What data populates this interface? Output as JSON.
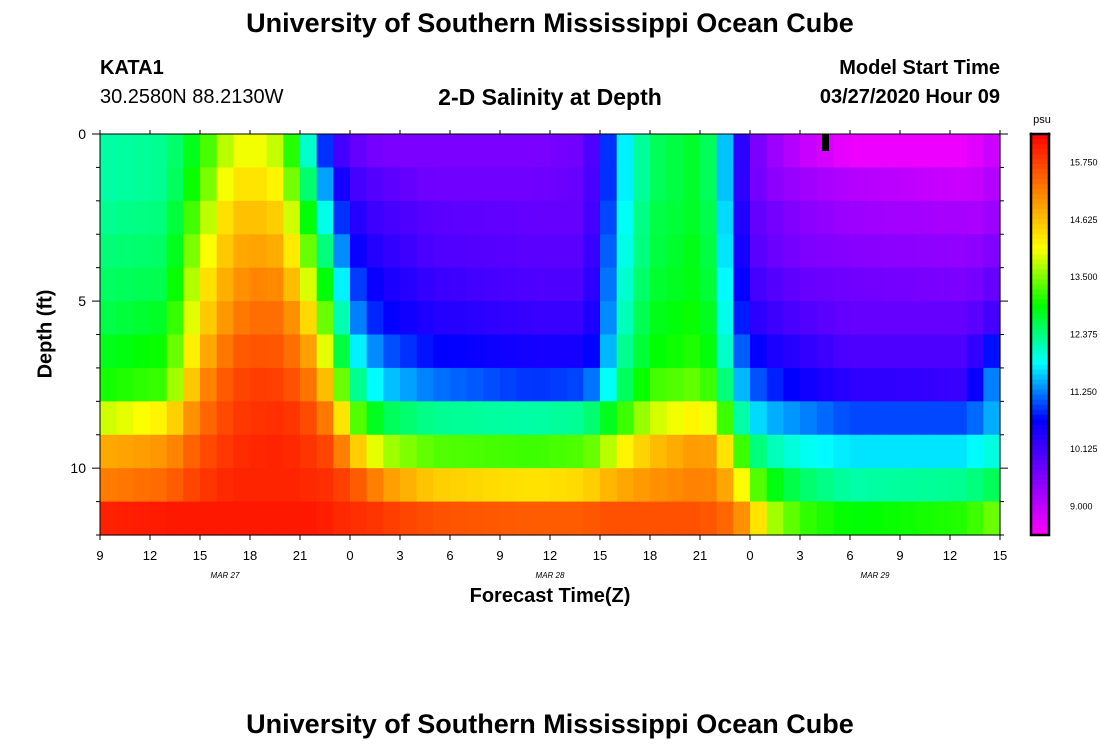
{
  "page": {
    "title_top": "University of Southern Mississippi Ocean Cube",
    "title_bottom": "University of Southern Mississippi Ocean Cube",
    "station": "KATA1",
    "coords": "30.2580N 88.2130W",
    "subtitle": "2-D Salinity at Depth",
    "model_label": "Model Start Time",
    "model_time": "03/27/2020 Hour 09"
  },
  "colors": {
    "magenta": "#ff00ff",
    "violet": "#8000ff",
    "blue": "#0000ff",
    "cyan": "#00ffff",
    "green": "#00ff00",
    "yellow": "#ffff00",
    "orange": "#ff8000",
    "red": "#ff0000"
  },
  "chart_data": {
    "type": "heatmap",
    "title": "2-D Salinity at Depth",
    "xlabel": "Forecast Time(Z)",
    "ylabel": "Depth (ft)",
    "colorbar_label": "psu",
    "colorbar_ticks": [
      "15.750",
      "14.625",
      "13.500",
      "12.375",
      "11.250",
      "10.125",
      "9.000"
    ],
    "colorbar_range": [
      8.4375,
      16.3125
    ],
    "x_tick_labels": [
      "9",
      "12",
      "15",
      "18",
      "21",
      "0",
      "3",
      "6",
      "9",
      "12",
      "15",
      "18",
      "21",
      "0",
      "3",
      "6",
      "9",
      "12",
      "15"
    ],
    "x_range_hours": [
      0,
      54
    ],
    "date_labels": [
      {
        "text": "MAR 27",
        "hour": 7.5
      },
      {
        "text": "MAR 28",
        "hour": 27
      },
      {
        "text": "MAR 29",
        "hour": 46.5
      }
    ],
    "y_tick_labels": [
      "0",
      "5",
      "10"
    ],
    "y_tick_values": [
      0,
      5,
      10
    ],
    "ylim": [
      0,
      12
    ],
    "rows": 12,
    "cols": 54,
    "keyframes": [
      {
        "h": 0,
        "v": [
          12.2,
          12.2,
          12.3,
          12.4,
          12.5,
          12.6,
          12.8,
          13.0,
          13.8,
          14.8,
          15.2,
          16.0
        ]
      },
      {
        "h": 4,
        "v": [
          12.3,
          12.3,
          12.4,
          12.5,
          12.6,
          12.8,
          13.0,
          13.2,
          14.2,
          15.0,
          15.4,
          16.1
        ]
      },
      {
        "h": 6,
        "v": [
          13.0,
          13.2,
          13.5,
          13.8,
          14.1,
          14.3,
          14.6,
          15.0,
          15.3,
          15.6,
          15.8,
          16.1
        ]
      },
      {
        "h": 8,
        "v": [
          14.0,
          14.3,
          14.6,
          14.8,
          15.0,
          15.2,
          15.5,
          15.7,
          15.8,
          15.9,
          16.0,
          16.1
        ]
      },
      {
        "h": 10,
        "v": [
          14.0,
          14.3,
          14.6,
          14.9,
          15.2,
          15.4,
          15.6,
          15.8,
          15.9,
          16.0,
          16.0,
          16.1
        ]
      },
      {
        "h": 11,
        "v": [
          13.6,
          14.0,
          14.4,
          14.7,
          15.0,
          15.3,
          15.5,
          15.7,
          15.9,
          16.0,
          16.0,
          16.1
        ]
      },
      {
        "h": 12,
        "v": [
          12.6,
          12.9,
          13.3,
          13.8,
          14.3,
          14.8,
          15.2,
          15.5,
          15.8,
          15.9,
          16.0,
          16.1
        ]
      },
      {
        "h": 13,
        "v": [
          11.5,
          12.0,
          12.5,
          13.0,
          13.5,
          14.0,
          14.6,
          15.1,
          15.5,
          15.8,
          15.9,
          16.1
        ]
      },
      {
        "h": 14,
        "v": [
          10.3,
          10.8,
          11.3,
          11.8,
          12.3,
          12.8,
          13.3,
          14.2,
          15.0,
          15.6,
          15.9,
          16.0
        ]
      },
      {
        "h": 15,
        "v": [
          9.9,
          10.2,
          10.5,
          10.8,
          11.2,
          11.5,
          12.0,
          12.6,
          13.6,
          14.8,
          15.6,
          15.9
        ]
      },
      {
        "h": 16,
        "v": [
          9.7,
          10.0,
          10.2,
          10.4,
          10.7,
          11.0,
          11.5,
          12.0,
          13.0,
          14.2,
          15.4,
          15.9
        ]
      },
      {
        "h": 17,
        "v": [
          9.6,
          9.9,
          10.1,
          10.3,
          10.5,
          10.7,
          11.1,
          11.6,
          12.6,
          13.7,
          15.0,
          15.8
        ]
      },
      {
        "h": 20,
        "v": [
          9.6,
          9.7,
          9.9,
          10.0,
          10.2,
          10.4,
          10.7,
          11.2,
          12.3,
          13.3,
          14.5,
          15.6
        ]
      },
      {
        "h": 26,
        "v": [
          9.6,
          9.7,
          9.8,
          9.9,
          10.0,
          10.2,
          10.5,
          10.9,
          12.2,
          13.2,
          14.3,
          15.5
        ]
      },
      {
        "h": 29,
        "v": [
          9.7,
          9.8,
          9.8,
          9.9,
          10.0,
          10.2,
          10.5,
          11.0,
          12.3,
          13.3,
          14.4,
          15.5
        ]
      },
      {
        "h": 30,
        "v": [
          10.3,
          10.3,
          10.4,
          10.5,
          10.6,
          10.7,
          10.9,
          11.4,
          12.6,
          13.5,
          14.6,
          15.6
        ]
      },
      {
        "h": 31,
        "v": [
          11.5,
          11.5,
          11.6,
          11.7,
          11.8,
          11.9,
          12.1,
          12.3,
          13.0,
          14.0,
          14.8,
          15.6
        ]
      },
      {
        "h": 33,
        "v": [
          12.5,
          12.5,
          12.6,
          12.6,
          12.7,
          12.8,
          12.9,
          13.2,
          13.8,
          14.6,
          15.0,
          15.6
        ]
      },
      {
        "h": 36,
        "v": [
          12.8,
          12.8,
          12.8,
          12.9,
          12.9,
          13.0,
          13.1,
          13.4,
          14.2,
          15.0,
          15.2,
          15.6
        ]
      },
      {
        "h": 37,
        "v": [
          12.3,
          12.3,
          12.4,
          12.4,
          12.5,
          12.6,
          12.7,
          13.0,
          13.8,
          14.8,
          15.1,
          15.5
        ]
      },
      {
        "h": 38,
        "v": [
          10.8,
          10.8,
          10.9,
          11.0,
          11.1,
          11.2,
          11.4,
          11.8,
          12.6,
          13.8,
          14.6,
          15.3
        ]
      },
      {
        "h": 39,
        "v": [
          9.8,
          9.8,
          9.9,
          10.0,
          10.2,
          10.4,
          10.8,
          11.2,
          11.8,
          12.6,
          13.6,
          14.8
        ]
      },
      {
        "h": 40,
        "v": [
          9.4,
          9.5,
          9.7,
          9.8,
          10.0,
          10.2,
          10.5,
          10.9,
          11.5,
          12.2,
          13.0,
          13.8
        ]
      },
      {
        "h": 42,
        "v": [
          9.0,
          9.3,
          9.5,
          9.6,
          9.8,
          10.0,
          10.3,
          10.6,
          11.3,
          11.9,
          12.5,
          13.2
        ]
      },
      {
        "h": 45,
        "v": [
          8.6,
          9.1,
          9.3,
          9.5,
          9.7,
          9.8,
          10.0,
          10.3,
          11.0,
          11.7,
          12.2,
          12.9
        ]
      },
      {
        "h": 52,
        "v": [
          8.6,
          8.9,
          9.2,
          9.4,
          9.6,
          9.8,
          10.0,
          10.2,
          11.0,
          11.7,
          12.3,
          13.1
        ]
      },
      {
        "h": 53,
        "v": [
          8.8,
          9.0,
          9.2,
          9.5,
          9.7,
          10.0,
          10.5,
          11.0,
          11.3,
          11.9,
          12.5,
          13.3
        ]
      },
      {
        "h": 54,
        "v": [
          9.0,
          9.2,
          9.4,
          9.6,
          9.9,
          10.2,
          11.0,
          11.5,
          11.6,
          12.0,
          12.6,
          13.5
        ]
      }
    ],
    "current_time_marker_hour": 43.5
  }
}
